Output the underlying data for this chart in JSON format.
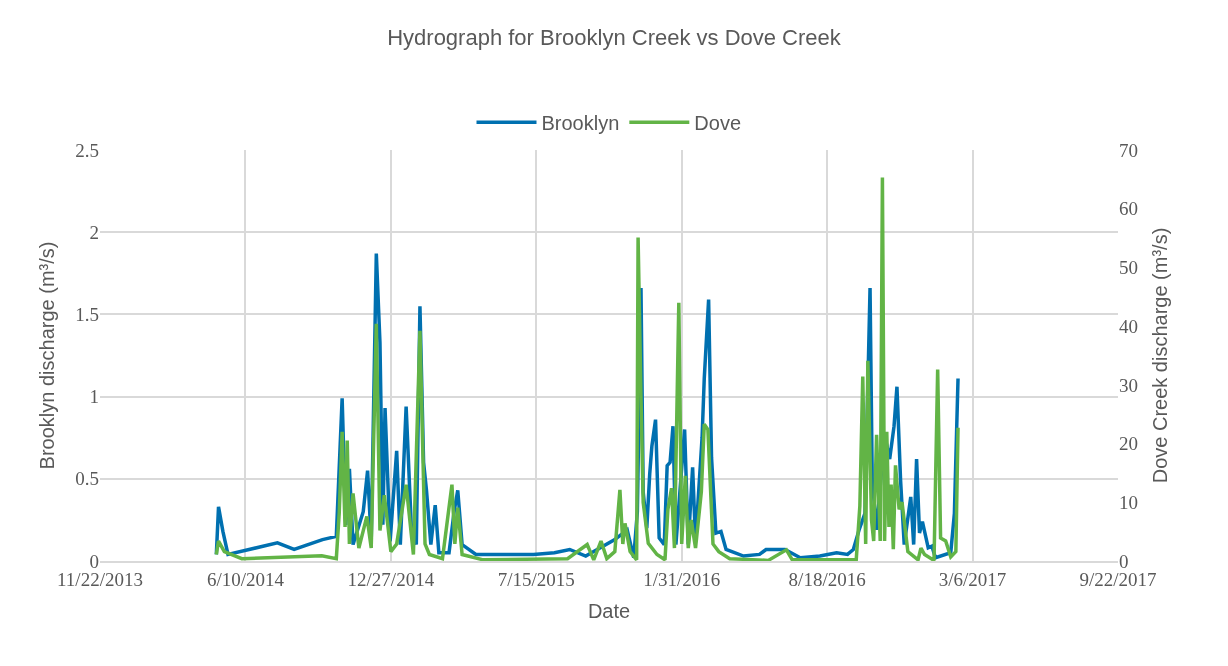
{
  "chart_data": {
    "type": "line",
    "title": "Hydrograph for Brooklyn Creek vs Dove Creek",
    "xlabel": "Date",
    "ylabel": "Brooklyn discharge (m³/s)",
    "y2label": "Dove Creek discharge (m³/s)",
    "xlim": [
      "2013-11-22",
      "2017-09-22"
    ],
    "xticks": [
      {
        "value": "2013-11-22",
        "label": "11/22/2013"
      },
      {
        "value": "2014-06-10",
        "label": "6/10/2014"
      },
      {
        "value": "2014-12-27",
        "label": "12/27/2014"
      },
      {
        "value": "2015-07-15",
        "label": "7/15/2015"
      },
      {
        "value": "2016-01-31",
        "label": "1/31/2016"
      },
      {
        "value": "2016-08-18",
        "label": "8/18/2016"
      },
      {
        "value": "2017-03-06",
        "label": "3/6/2017"
      },
      {
        "value": "2017-09-22",
        "label": "9/22/2017"
      }
    ],
    "ylim": [
      0,
      2.5
    ],
    "yticks": [
      0,
      0.5,
      1,
      1.5,
      2,
      2.5
    ],
    "y2lim": [
      0,
      70
    ],
    "y2ticks": [
      0,
      10,
      20,
      30,
      40,
      50,
      60,
      70
    ],
    "grid": true,
    "legend": "top",
    "marker": "none",
    "line_style": "solid",
    "series": [
      {
        "name": "Brooklyn",
        "color": "#0070b0",
        "x": [
          "2014-05-01",
          "2014-05-04",
          "2014-05-10",
          "2014-05-17",
          "2014-07-24",
          "2014-08-16",
          "2014-09-24",
          "2014-10-13",
          "2014-10-21",
          "2014-10-26",
          "2014-10-31",
          "2014-11-05",
          "2014-11-19",
          "2014-11-25",
          "2014-11-30",
          "2014-12-07",
          "2014-12-12",
          "2014-12-16",
          "2014-12-19",
          "2014-12-26",
          "2015-01-04",
          "2015-01-09",
          "2015-01-17",
          "2015-01-24",
          "2015-01-31",
          "2015-02-05",
          "2015-02-10",
          "2015-02-14",
          "2015-02-20",
          "2015-02-26",
          "2015-03-03",
          "2015-03-17",
          "2015-03-24",
          "2015-03-29",
          "2015-04-04",
          "2015-04-23",
          "2015-05-13",
          "2015-06-03",
          "2015-07-11",
          "2015-08-09",
          "2015-08-30",
          "2015-09-21",
          "2015-10-31",
          "2015-11-17",
          "2015-11-26",
          "2015-12-01",
          "2015-12-06",
          "2015-12-09",
          "2015-12-14",
          "2015-12-18",
          "2015-12-21",
          "2015-12-26",
          "2015-12-31",
          "2016-01-07",
          "2016-01-11",
          "2016-01-15",
          "2016-01-19",
          "2016-01-23",
          "2016-02-04",
          "2016-02-09",
          "2016-02-15",
          "2016-02-19",
          "2016-02-28",
          "2016-03-02",
          "2016-03-08",
          "2016-03-12",
          "2016-03-18",
          "2016-03-25",
          "2016-04-01",
          "2016-04-25",
          "2016-05-17",
          "2016-05-26",
          "2016-06-21",
          "2016-07-12",
          "2016-08-08",
          "2016-08-31",
          "2016-09-15",
          "2016-09-23",
          "2016-10-01",
          "2016-10-09",
          "2016-10-16",
          "2016-10-19",
          "2016-10-25",
          "2016-11-05",
          "2016-11-12",
          "2016-11-18",
          "2016-11-22",
          "2016-11-27",
          "2016-12-02",
          "2016-12-11",
          "2016-12-15",
          "2016-12-19",
          "2016-12-23",
          "2016-12-27",
          "2017-01-04",
          "2017-01-09",
          "2017-01-14",
          "2017-02-04",
          "2017-02-09",
          "2017-02-14"
        ],
        "values": [
          0.04,
          0.33,
          0.18,
          0.04,
          0.11,
          0.07,
          0.13,
          0.15,
          0.99,
          0.22,
          0.56,
          0.1,
          0.3,
          0.55,
          0.12,
          1.87,
          1.33,
          0.22,
          0.93,
          0.12,
          0.67,
          0.1,
          0.94,
          0.22,
          0.1,
          1.55,
          0.6,
          0.43,
          0.1,
          0.34,
          0.05,
          0.05,
          0.3,
          0.43,
          0.1,
          0.04,
          0.04,
          0.04,
          0.04,
          0.05,
          0.07,
          0.03,
          0.13,
          0.19,
          0.02,
          0.3,
          1.66,
          0.42,
          0.2,
          0.53,
          0.7,
          0.86,
          0.14,
          0.1,
          0.58,
          0.6,
          0.82,
          0.1,
          0.8,
          0.1,
          0.57,
          0.12,
          0.75,
          1.11,
          1.59,
          0.63,
          0.17,
          0.18,
          0.07,
          0.03,
          0.04,
          0.07,
          0.07,
          0.02,
          0.03,
          0.05,
          0.04,
          0.07,
          0.19,
          0.29,
          1.66,
          0.49,
          0.19,
          0.77,
          0.62,
          0.82,
          1.06,
          0.49,
          0.1,
          0.39,
          0.1,
          0.62,
          0.17,
          0.24,
          0.08,
          0.09,
          0.02,
          0.05,
          0.29,
          1.11
        ]
      },
      {
        "name": "Dove",
        "color": "#62b446",
        "axis": "y2",
        "x": [
          "2014-05-01",
          "2014-05-04",
          "2014-05-12",
          "2014-06-05",
          "2014-09-23",
          "2014-10-13",
          "2014-10-17",
          "2014-10-21",
          "2014-10-25",
          "2014-10-28",
          "2014-10-31",
          "2014-11-05",
          "2014-11-13",
          "2014-11-24",
          "2014-11-30",
          "2014-12-07",
          "2014-12-12",
          "2014-12-18",
          "2014-12-27",
          "2015-01-04",
          "2015-01-17",
          "2015-01-27",
          "2015-02-05",
          "2015-02-12",
          "2015-02-18",
          "2015-03-08",
          "2015-03-21",
          "2015-03-25",
          "2015-03-29",
          "2015-04-04",
          "2015-05-03",
          "2015-08-27",
          "2015-09-23",
          "2015-10-02",
          "2015-10-12",
          "2015-10-20",
          "2015-10-31",
          "2015-11-07",
          "2015-11-11",
          "2015-11-14",
          "2015-11-21",
          "2015-11-30",
          "2015-12-02",
          "2015-12-06",
          "2015-12-09",
          "2015-12-16",
          "2015-12-28",
          "2016-01-08",
          "2016-01-12",
          "2016-01-17",
          "2016-01-21",
          "2016-01-27",
          "2016-01-31",
          "2016-02-05",
          "2016-02-09",
          "2016-02-13",
          "2016-02-19",
          "2016-02-27",
          "2016-03-02",
          "2016-03-07",
          "2016-03-14",
          "2016-03-22",
          "2016-04-06",
          "2016-05-29",
          "2016-06-23",
          "2016-07-01",
          "2016-09-27",
          "2016-10-02",
          "2016-10-06",
          "2016-10-10",
          "2016-10-13",
          "2016-10-18",
          "2016-10-21",
          "2016-10-25",
          "2016-10-30",
          "2016-11-02",
          "2016-11-05",
          "2016-11-08",
          "2016-11-11",
          "2016-11-14",
          "2016-11-17",
          "2016-11-20",
          "2016-11-25",
          "2016-11-29",
          "2016-12-07",
          "2016-12-21",
          "2016-12-25",
          "2016-12-30",
          "2017-01-12",
          "2017-01-17",
          "2017-01-21",
          "2017-01-28",
          "2017-02-04",
          "2017-02-11",
          "2017-02-14"
        ],
        "values": [
          1.1,
          3.4,
          1.6,
          0.4,
          0.9,
          0.4,
          8.2,
          22,
          5.8,
          20.5,
          2.9,
          11.5,
          2.2,
          7.6,
          2.2,
          40.4,
          5.2,
          11.2,
          1.6,
          2.9,
          13,
          1.1,
          39.2,
          2.9,
          1.1,
          0.4,
          13,
          2.9,
          9.1,
          1.1,
          0.2,
          0.4,
          2.8,
          0.2,
          3.4,
          0.4,
          1.6,
          12.1,
          2.9,
          6.4,
          1.6,
          0.2,
          55.1,
          27.8,
          10,
          3,
          1.1,
          0.2,
          8.8,
          12.4,
          2.2,
          44,
          2.9,
          14.5,
          2.2,
          7,
          2.2,
          11.8,
          23.3,
          22.4,
          2.9,
          1.6,
          0.4,
          0.1,
          1.9,
          0.2,
          0.2,
          9.4,
          31.4,
          2.9,
          34.1,
          7,
          3.4,
          21.5,
          3.4,
          65.3,
          3.4,
          22,
          5.8,
          13,
          2,
          16.3,
          8.8,
          10,
          1.6,
          0.2,
          2.2,
          1.1,
          0.1,
          32.6,
          3.9,
          3.4,
          0.7,
          1.6,
          22.7
        ]
      }
    ]
  }
}
